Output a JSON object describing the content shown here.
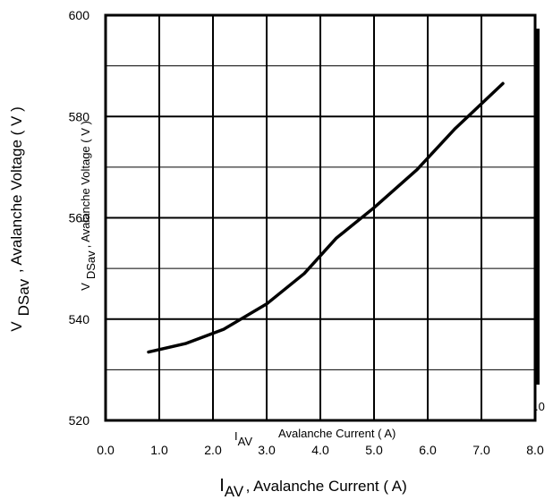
{
  "chart_data": {
    "type": "line",
    "xlabel": {
      "symbol": "I",
      "subscript": "AV",
      "text": ", Avalanche Current ( A)"
    },
    "ylabel": {
      "symbol": "V",
      "subscript": "DSav",
      "text": ", Avalanche Voltage ( V )"
    },
    "ghost_overlay": {
      "xlabel": {
        "symbol": "I",
        "subscript": "AV",
        "text": "Avalanche Current ( A)"
      },
      "ylabel": {
        "symbol": "V",
        "subscript": "DSav",
        "text": ", Avalanche Voltage ( V )"
      },
      "edge_fragment": ".0"
    },
    "xlim": [
      0.0,
      8.0
    ],
    "ylim": [
      520,
      600
    ],
    "x_ticks": [
      "0.0",
      "1.0",
      "2.0",
      "3.0",
      "4.0",
      "5.0",
      "6.0",
      "7.0",
      "8.0"
    ],
    "y_ticks": [
      "520",
      "540",
      "560",
      "580",
      "600"
    ],
    "grid": true,
    "series": [
      {
        "x": [
          0.8,
          1.5,
          2.2,
          3.0,
          3.7,
          4.3,
          5.0,
          5.8,
          6.5,
          7.4
        ],
        "y": [
          533.5,
          535.2,
          538.0,
          543.0,
          549.0,
          556.0,
          562.0,
          569.5,
          577.5,
          586.5
        ]
      }
    ]
  }
}
